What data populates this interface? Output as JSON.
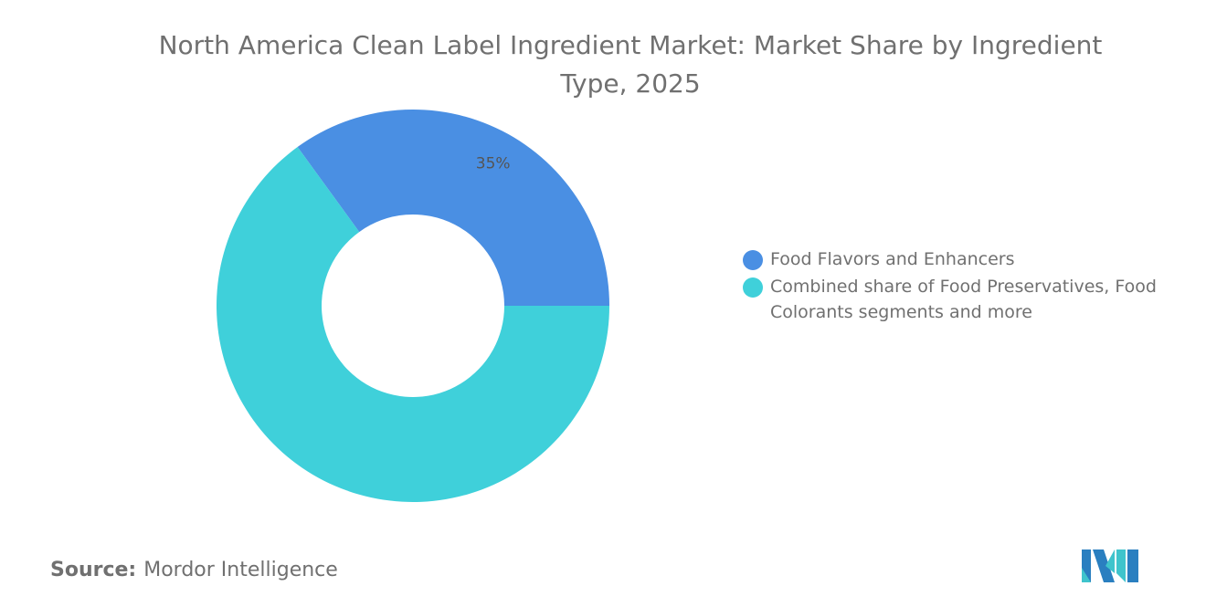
{
  "chart_data": {
    "type": "pie",
    "variant": "donut",
    "title": "North America Clean Label Ingredient Market: Market Share by Ingredient Type, 2025",
    "categories": [
      "Food Flavors and Enhancers",
      "Combined share of Food Preservatives, Food Colorants segments and more"
    ],
    "values": [
      35,
      65
    ],
    "data_labels": [
      "35%",
      ""
    ],
    "colors": [
      "#4a8fe3",
      "#3fd0da"
    ],
    "legend_position": "right"
  },
  "source": {
    "label": "Source:",
    "value": "Mordor Intelligence"
  },
  "logo": {
    "name": "mordor-intelligence-logo",
    "colors": [
      "#2a7fc0",
      "#3fc4cc"
    ]
  }
}
